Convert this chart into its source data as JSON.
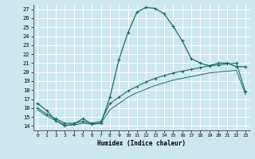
{
  "xlabel": "Humidex (Indice chaleur)",
  "bg_color": "#cce8ec",
  "line_color": "#1e6b5e",
  "grid_color": "#b0d8dc",
  "xmin": -0.5,
  "xmax": 23.5,
  "ymin": 13.5,
  "ymax": 27.5,
  "yticks": [
    14,
    15,
    16,
    17,
    18,
    19,
    20,
    21,
    22,
    23,
    24,
    25,
    26,
    27
  ],
  "xticks": [
    0,
    1,
    2,
    3,
    4,
    5,
    6,
    7,
    8,
    9,
    10,
    11,
    12,
    13,
    14,
    15,
    16,
    17,
    18,
    19,
    20,
    21,
    22,
    23
  ],
  "curve1_x": [
    0,
    1,
    2,
    3,
    4,
    5,
    6,
    7,
    8,
    9,
    10,
    11,
    12,
    13,
    14,
    15,
    16,
    17,
    18,
    19,
    20,
    21,
    22,
    23
  ],
  "curve1_y": [
    16.5,
    15.7,
    14.6,
    14.0,
    14.2,
    14.8,
    14.2,
    14.3,
    17.2,
    21.4,
    24.4,
    26.7,
    27.2,
    27.1,
    26.5,
    25.1,
    23.5,
    21.5,
    21.0,
    20.7,
    21.0,
    21.0,
    20.6,
    20.6
  ],
  "curve2_x": [
    0,
    1,
    2,
    3,
    4,
    5,
    6,
    7,
    8,
    9,
    10,
    11,
    12,
    13,
    14,
    15,
    16,
    17,
    18,
    19,
    20,
    21,
    22,
    23
  ],
  "curve2_y": [
    16.0,
    15.3,
    14.8,
    14.3,
    14.3,
    14.5,
    14.3,
    14.5,
    16.5,
    17.2,
    17.9,
    18.4,
    18.9,
    19.3,
    19.6,
    19.9,
    20.1,
    20.3,
    20.5,
    20.7,
    20.8,
    20.9,
    21.0,
    17.8
  ],
  "curve3_x": [
    0,
    1,
    2,
    3,
    4,
    5,
    6,
    7,
    8,
    9,
    10,
    11,
    12,
    13,
    14,
    15,
    16,
    17,
    18,
    19,
    20,
    21,
    22,
    23
  ],
  "curve3_y": [
    15.8,
    15.1,
    14.6,
    14.1,
    14.1,
    14.3,
    14.2,
    14.3,
    15.8,
    16.5,
    17.2,
    17.7,
    18.1,
    18.5,
    18.8,
    19.1,
    19.3,
    19.5,
    19.7,
    19.9,
    20.0,
    20.1,
    20.2,
    17.5
  ]
}
